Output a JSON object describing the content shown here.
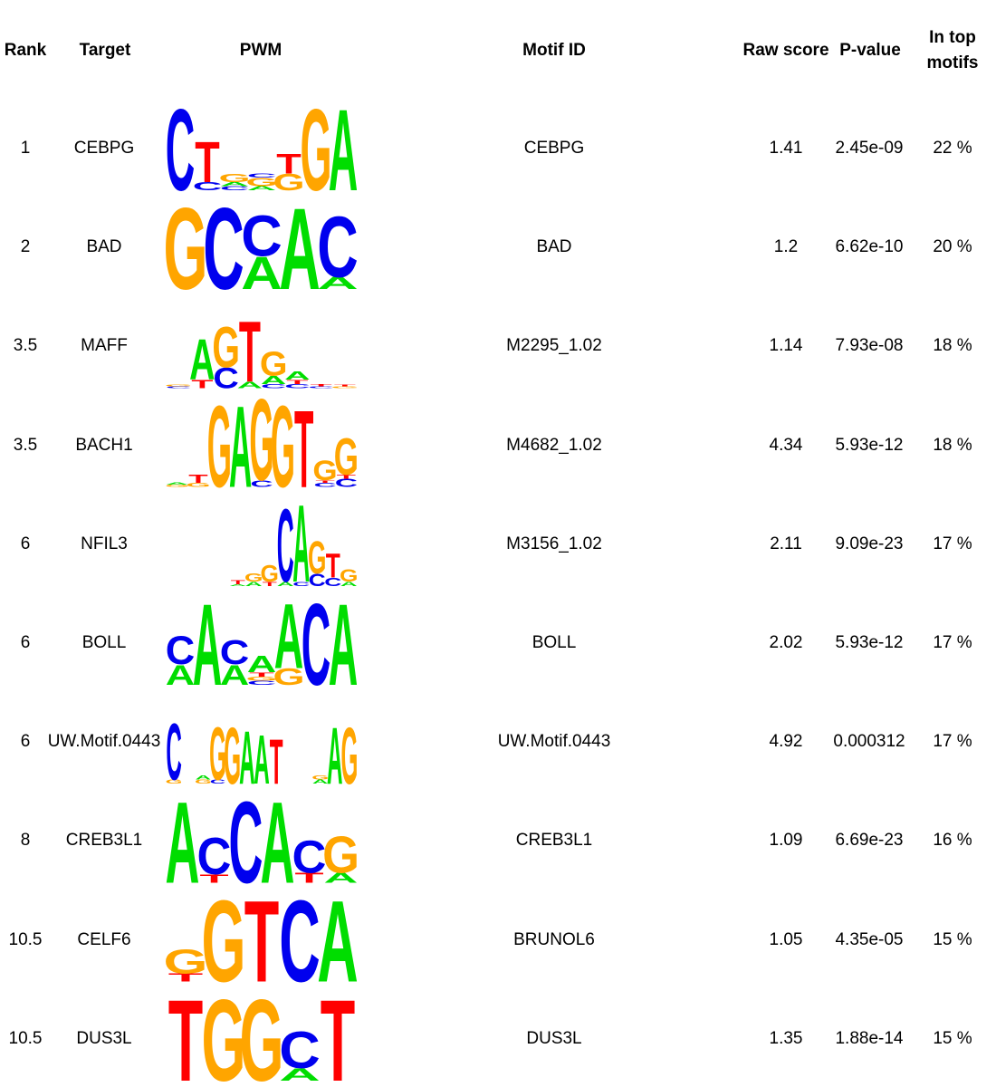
{
  "header": {
    "rank": "Rank",
    "target": "Target",
    "pwm": "PWM",
    "motif_id": "Motif ID",
    "raw_score": "Raw score",
    "p_value": "P-value",
    "in_top_1": "In top",
    "in_top_2": "motifs"
  },
  "colors": {
    "A": "#00dd00",
    "C": "#0000ee",
    "G": "#ffa500",
    "T": "#ff0000"
  },
  "rows": [
    {
      "rank": "1",
      "target": "CEBPG",
      "motif_id": "CEBPG",
      "raw_score": "1.41",
      "p_value": "2.45e-09",
      "in_top": "22 %",
      "logo": [
        [
          [
            "C",
            1.0
          ]
        ],
        [
          [
            "C",
            0.1
          ],
          [
            "T",
            0.5
          ]
        ],
        [
          [
            "C",
            0.05
          ],
          [
            "A",
            0.05
          ],
          [
            "G",
            0.1
          ]
        ],
        [
          [
            "A",
            0.05
          ],
          [
            "G",
            0.1
          ],
          [
            "C",
            0.05
          ]
        ],
        [
          [
            "G",
            0.2
          ],
          [
            "T",
            0.25
          ]
        ],
        [
          [
            "G",
            1.0
          ]
        ],
        [
          [
            "A",
            1.0
          ]
        ]
      ]
    },
    {
      "rank": "2",
      "target": "BAD",
      "motif_id": "BAD",
      "raw_score": "1.2",
      "p_value": "6.62e-10",
      "in_top": "20 %",
      "logo": [
        [
          [
            "G",
            1.0
          ]
        ],
        [
          [
            "C",
            1.0
          ]
        ],
        [
          [
            "A",
            0.4
          ],
          [
            "C",
            0.5
          ]
        ],
        [
          [
            "A",
            1.0
          ]
        ],
        [
          [
            "A",
            0.15
          ],
          [
            "C",
            0.75
          ]
        ]
      ]
    },
    {
      "rank": "3.5",
      "target": "MAFF",
      "motif_id": "M2295_1.02",
      "raw_score": "1.14",
      "p_value": "7.93e-08",
      "in_top": "18 %",
      "logo": [
        [
          [
            "C",
            0.02
          ],
          [
            "G",
            0.02
          ]
        ],
        [
          [
            "T",
            0.1
          ],
          [
            "A",
            0.5
          ]
        ],
        [
          [
            "C",
            0.25
          ],
          [
            "G",
            0.5
          ]
        ],
        [
          [
            "A",
            0.08
          ],
          [
            "T",
            0.75
          ]
        ],
        [
          [
            "C",
            0.05
          ],
          [
            "A",
            0.1
          ],
          [
            "G",
            0.3
          ]
        ],
        [
          [
            "C",
            0.05
          ],
          [
            "T",
            0.05
          ],
          [
            "A",
            0.1
          ]
        ],
        [
          [
            "C",
            0.02
          ],
          [
            "T",
            0.03
          ]
        ],
        [
          [
            "G",
            0.02
          ],
          [
            "T",
            0.02
          ]
        ]
      ]
    },
    {
      "rank": "3.5",
      "target": "BACH1",
      "motif_id": "M4682_1.02",
      "raw_score": "4.34",
      "p_value": "5.93e-12",
      "in_top": "18 %",
      "logo": [
        [
          [
            "G",
            0.03
          ],
          [
            "A",
            0.03
          ]
        ],
        [
          [
            "G",
            0.05
          ],
          [
            "T",
            0.1
          ]
        ],
        [
          [
            "G",
            1.0
          ]
        ],
        [
          [
            "A",
            1.0
          ]
        ],
        [
          [
            "C",
            0.08
          ],
          [
            "G",
            1.0
          ]
        ],
        [
          [
            "G",
            1.0
          ]
        ],
        [
          [
            "T",
            0.95
          ]
        ],
        [
          [
            "C",
            0.05
          ],
          [
            "T",
            0.03
          ],
          [
            "G",
            0.25
          ]
        ],
        [
          [
            "C",
            0.1
          ],
          [
            "T",
            0.05
          ],
          [
            "G",
            0.45
          ]
        ]
      ]
    },
    {
      "rank": "6",
      "target": "NFIL3",
      "motif_id": "M3156_1.02",
      "raw_score": "2.11",
      "p_value": "9.09e-23",
      "in_top": "17 %",
      "logo": [
        [],
        [],
        [],
        [],
        [
          [
            "A",
            0.02
          ],
          [
            "T",
            0.05
          ]
        ],
        [
          [
            "A",
            0.05
          ],
          [
            "G",
            0.1
          ]
        ],
        [
          [
            "T",
            0.05
          ],
          [
            "G",
            0.2
          ]
        ],
        [
          [
            "A",
            0.05
          ],
          [
            "C",
            0.9
          ]
        ],
        [
          [
            "C",
            0.05
          ],
          [
            "A",
            0.95
          ]
        ],
        [
          [
            "C",
            0.15
          ],
          [
            "G",
            0.4
          ]
        ],
        [
          [
            "C",
            0.1
          ],
          [
            "T",
            0.3
          ]
        ],
        [
          [
            "A",
            0.05
          ],
          [
            "G",
            0.15
          ]
        ]
      ]
    },
    {
      "rank": "6",
      "target": "BOLL",
      "motif_id": "BOLL",
      "raw_score": "2.02",
      "p_value": "5.93e-12",
      "in_top": "17 %",
      "logo": [
        [
          [
            "A",
            0.25
          ],
          [
            "C",
            0.35
          ]
        ],
        [
          [
            "A",
            1.0
          ]
        ],
        [
          [
            "A",
            0.25
          ],
          [
            "C",
            0.3
          ]
        ],
        [
          [
            "C",
            0.05
          ],
          [
            "G",
            0.05
          ],
          [
            "T",
            0.05
          ],
          [
            "A",
            0.2
          ]
        ],
        [
          [
            "G",
            0.2
          ],
          [
            "A",
            0.8
          ]
        ],
        [
          [
            "C",
            1.0
          ]
        ],
        [
          [
            "A",
            1.0
          ]
        ]
      ]
    },
    {
      "rank": "6",
      "target": "UW.Motif.0443",
      "motif_id": "UW.Motif.0443",
      "raw_score": "4.92",
      "p_value": "0.000312",
      "in_top": "17 %",
      "logo": [
        [
          [
            "G",
            0.05
          ],
          [
            "C",
            0.7
          ]
        ],
        [],
        [
          [
            "G",
            0.05
          ],
          [
            "A",
            0.05
          ]
        ],
        [
          [
            "C",
            0.05
          ],
          [
            "G",
            0.65
          ]
        ],
        [
          [
            "G",
            0.7
          ]
        ],
        [
          [
            "A",
            0.65
          ]
        ],
        [
          [
            "A",
            0.6
          ]
        ],
        [
          [
            "T",
            0.55
          ]
        ],
        [],
        [],
        [
          [
            "A",
            0.05
          ],
          [
            "G",
            0.05
          ]
        ],
        [
          [
            "A",
            0.7
          ]
        ],
        [
          [
            "G",
            0.7
          ]
        ]
      ]
    },
    {
      "rank": "8",
      "target": "CREB3L1",
      "motif_id": "CREB3L1",
      "raw_score": "1.09",
      "p_value": "6.69e-23",
      "in_top": "16 %",
      "logo": [
        [
          [
            "A",
            1.0
          ]
        ],
        [
          [
            "T",
            0.1
          ],
          [
            "C",
            0.45
          ]
        ],
        [
          [
            "C",
            1.0
          ]
        ],
        [
          [
            "A",
            1.0
          ]
        ],
        [
          [
            "T",
            0.12
          ],
          [
            "C",
            0.4
          ]
        ],
        [
          [
            "A",
            0.12
          ],
          [
            "G",
            0.45
          ]
        ]
      ]
    },
    {
      "rank": "10.5",
      "target": "CELF6",
      "motif_id": "BRUNOL6",
      "raw_score": "1.05",
      "p_value": "4.35e-05",
      "in_top": "15 %",
      "logo": [
        [
          [
            "T",
            0.1
          ],
          [
            "G",
            0.3
          ]
        ],
        [
          [
            "G",
            1.0
          ]
        ],
        [
          [
            "T",
            1.0
          ]
        ],
        [
          [
            "C",
            1.0
          ]
        ],
        [
          [
            "A",
            1.0
          ]
        ]
      ]
    },
    {
      "rank": "10.5",
      "target": "DUS3L",
      "motif_id": "DUS3L",
      "raw_score": "1.35",
      "p_value": "1.88e-14",
      "in_top": "15 %",
      "logo": [
        [
          [
            "T",
            1.0
          ]
        ],
        [
          [
            "G",
            1.0
          ]
        ],
        [
          [
            "G",
            1.0
          ]
        ],
        [
          [
            "A",
            0.15
          ],
          [
            "C",
            0.45
          ]
        ],
        [
          [
            "T",
            1.0
          ]
        ]
      ]
    }
  ]
}
